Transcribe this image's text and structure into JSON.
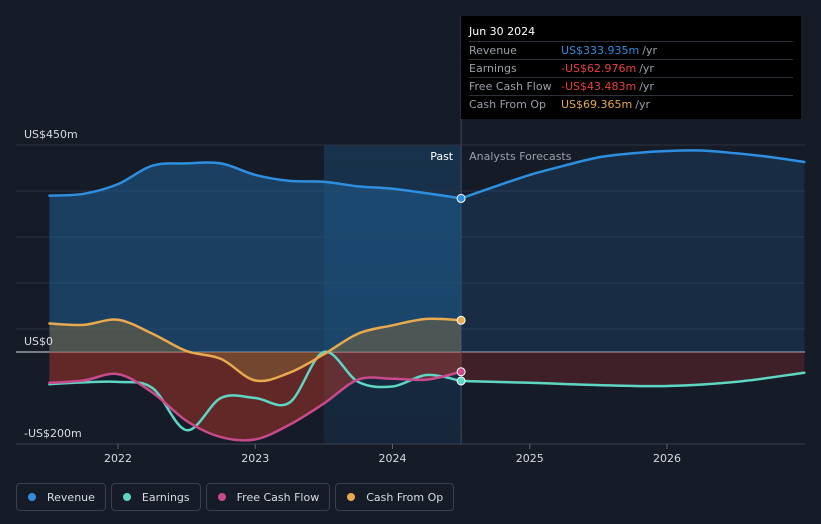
{
  "tooltip": {
    "date": "Jun 30 2024",
    "rows": [
      {
        "label": "Revenue",
        "value": "US$333.935m",
        "unit": "/yr",
        "color": "#2e8fe0"
      },
      {
        "label": "Earnings",
        "value": "-US$62.976m",
        "unit": "/yr",
        "color": "#e84040"
      },
      {
        "label": "Free Cash Flow",
        "value": "-US$43.483m",
        "unit": "/yr",
        "color": "#e84040"
      },
      {
        "label": "Cash From Op",
        "value": "US$69.365m",
        "unit": "/yr",
        "color": "#e8a94f"
      }
    ]
  },
  "labels": {
    "past": "Past",
    "forecast": "Analysts Forecasts"
  },
  "legend": [
    {
      "label": "Revenue",
      "color": "#2e8fe0"
    },
    {
      "label": "Earnings",
      "color": "#5ed6c4"
    },
    {
      "label": "Free Cash Flow",
      "color": "#c94a8c"
    },
    {
      "label": "Cash From Op",
      "color": "#e8a94f"
    }
  ],
  "chart_data": {
    "type": "line",
    "title": "",
    "xlabel": "",
    "ylabel": "",
    "xlim": [
      2021.5,
      2027.0
    ],
    "ylim": [
      -200,
      450
    ],
    "ytick_labels": [
      {
        "value": 450,
        "label": "US$450m"
      },
      {
        "value": 0,
        "label": "US$0"
      },
      {
        "value": -200,
        "label": "-US$200m"
      }
    ],
    "xtick_labels": [
      {
        "value": 2022,
        "label": "2022"
      },
      {
        "value": 2023,
        "label": "2023"
      },
      {
        "value": 2024,
        "label": "2024"
      },
      {
        "value": 2025,
        "label": "2025"
      },
      {
        "value": 2026,
        "label": "2026"
      }
    ],
    "past_region_start": 2023.5,
    "divider_x": 2024.5,
    "series": [
      {
        "name": "Revenue",
        "color": "#2e8fe0",
        "x": [
          2021.5,
          2021.75,
          2022.0,
          2022.25,
          2022.5,
          2022.75,
          2023.0,
          2023.25,
          2023.5,
          2023.75,
          2024.0,
          2024.25,
          2024.5
        ],
        "values": [
          340,
          344,
          365,
          405,
          410,
          410,
          385,
          372,
          370,
          360,
          355,
          345,
          334
        ]
      },
      {
        "name": "Revenue Forecast",
        "color": "#2e8fe0",
        "x": [
          2024.5,
          2024.75,
          2025.0,
          2025.25,
          2025.5,
          2025.75,
          2026.0,
          2026.25,
          2026.5,
          2026.75,
          2027.0
        ],
        "values": [
          334,
          360,
          385,
          405,
          423,
          432,
          437,
          438,
          432,
          424,
          413
        ]
      },
      {
        "name": "Earnings",
        "color": "#5ed6c4",
        "x": [
          2021.5,
          2021.75,
          2022.0,
          2022.25,
          2022.5,
          2022.75,
          2023.0,
          2023.25,
          2023.5,
          2023.75,
          2024.0,
          2024.25,
          2024.5
        ],
        "values": [
          -70,
          -66,
          -65,
          -78,
          -170,
          -100,
          -100,
          -110,
          0,
          -65,
          -75,
          -50,
          -63
        ]
      },
      {
        "name": "Earnings Forecast",
        "color": "#5ed6c4",
        "x": [
          2024.5,
          2025.0,
          2025.5,
          2026.0,
          2026.5,
          2027.0
        ],
        "values": [
          -63,
          -67,
          -72,
          -74,
          -65,
          -45
        ]
      },
      {
        "name": "Free Cash Flow",
        "color": "#c94a8c",
        "x": [
          2021.5,
          2021.75,
          2022.0,
          2022.25,
          2022.5,
          2022.75,
          2023.0,
          2023.25,
          2023.5,
          2023.75,
          2024.0,
          2024.25,
          2024.5
        ],
        "values": [
          -67,
          -62,
          -48,
          -88,
          -150,
          -185,
          -190,
          -158,
          -112,
          -60,
          -58,
          -60,
          -43
        ]
      },
      {
        "name": "Cash From Op",
        "color": "#e8a94f",
        "x": [
          2021.5,
          2021.75,
          2022.0,
          2022.25,
          2022.5,
          2022.75,
          2023.0,
          2023.25,
          2023.5,
          2023.75,
          2024.0,
          2024.25,
          2024.5
        ],
        "values": [
          62,
          59,
          70,
          40,
          2,
          -15,
          -62,
          -45,
          -5,
          40,
          58,
          72,
          69
        ]
      }
    ],
    "highlight_points": [
      {
        "series": "Revenue",
        "x": 2024.5,
        "y": 334,
        "color": "#2e8fe0"
      },
      {
        "series": "Earnings",
        "x": 2024.5,
        "y": -63,
        "color": "#5ed6c4"
      },
      {
        "series": "Free Cash Flow",
        "x": 2024.5,
        "y": -43,
        "color": "#c94a8c"
      },
      {
        "series": "Cash From Op",
        "x": 2024.5,
        "y": 69,
        "color": "#e8a94f"
      }
    ]
  }
}
